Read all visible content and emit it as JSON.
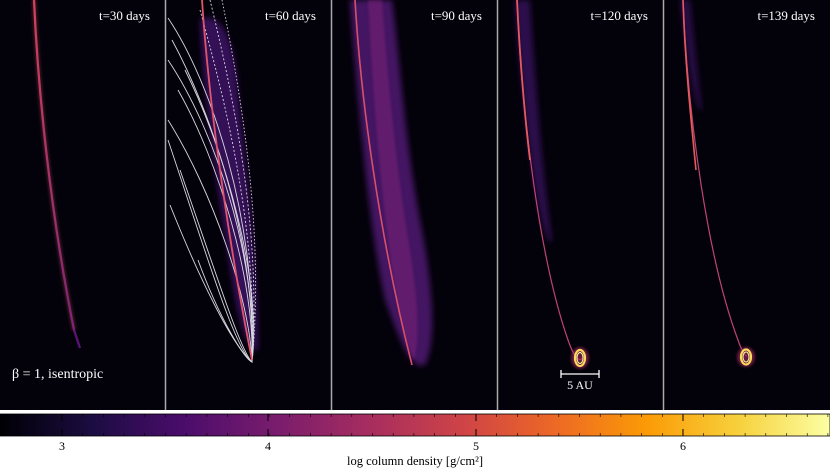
{
  "panels": [
    {
      "label": "t=30 days"
    },
    {
      "label": "t=60 days"
    },
    {
      "label": "t=90 days"
    },
    {
      "label": "t=120 days"
    },
    {
      "label": "t=139 days"
    }
  ],
  "annotations": {
    "beta_label": "β = 1, isentropic",
    "scale_bar_label": "5 AU"
  },
  "colorbar": {
    "ticks": [
      "3",
      "4",
      "5",
      "6"
    ],
    "label": "log column density [g/cm²]",
    "colormap": "inferno",
    "colors": [
      "#000004",
      "#1b0c41",
      "#4a0c6b",
      "#781c6d",
      "#a52c60",
      "#cf4446",
      "#ed6925",
      "#fb9b06",
      "#f7d13d",
      "#fcffa4"
    ]
  }
}
